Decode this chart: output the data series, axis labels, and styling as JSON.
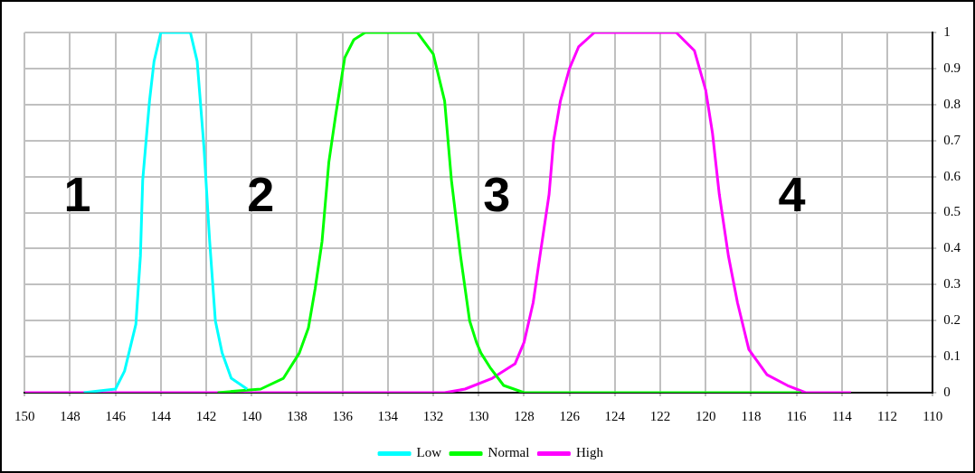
{
  "chart_data": {
    "type": "line",
    "xlim": [
      150,
      110
    ],
    "xticks": [
      150,
      148,
      146,
      144,
      142,
      140,
      138,
      136,
      134,
      132,
      130,
      128,
      126,
      124,
      122,
      120,
      118,
      116,
      114,
      112,
      110
    ],
    "ylim": [
      0,
      1
    ],
    "yticks": [
      0,
      0.1,
      0.2,
      0.3,
      0.4,
      0.5,
      0.6,
      0.7,
      0.8,
      0.9,
      1
    ],
    "grid": true,
    "legend": "bottom",
    "marker": "none",
    "line_style": "solid",
    "series": [
      {
        "name": "Low",
        "color": "#00ffff",
        "x": [
          147.4,
          146.0,
          145.6,
          145.1,
          144.9,
          144.8,
          144.5,
          144.3,
          144.0,
          142.7,
          142.4,
          142.1,
          141.85,
          141.6,
          141.3,
          140.9,
          140.2
        ],
        "values": [
          0,
          0.01,
          0.06,
          0.19,
          0.38,
          0.59,
          0.81,
          0.92,
          1,
          1,
          0.92,
          0.68,
          0.42,
          0.2,
          0.11,
          0.04,
          0.01
        ]
      },
      {
        "name": "Normal",
        "color": "#00ff00",
        "x": [
          141.5,
          139.6,
          138.6,
          137.9,
          137.5,
          137.2,
          136.9,
          136.6,
          136.3,
          135.9,
          135.5,
          135.0,
          132.7,
          132.0,
          131.5,
          131.2,
          130.8,
          130.4,
          130.1,
          129.9,
          129.5,
          128.9,
          128.0,
          115.8
        ],
        "values": [
          0,
          0.01,
          0.04,
          0.11,
          0.18,
          0.29,
          0.42,
          0.64,
          0.77,
          0.93,
          0.98,
          1,
          1,
          0.94,
          0.81,
          0.59,
          0.38,
          0.2,
          0.14,
          0.11,
          0.07,
          0.02,
          0,
          0
        ]
      },
      {
        "name": "High",
        "color": "#ff00ff",
        "x": [
          150,
          131.5,
          130.6,
          129.4,
          128.4,
          128.0,
          127.6,
          127.3,
          126.9,
          126.7,
          126.4,
          126.0,
          125.6,
          124.9,
          121.3,
          120.5,
          120.0,
          119.7,
          119.4,
          119.0,
          118.6,
          118.1,
          117.3,
          116.4,
          115.6,
          113.6
        ],
        "values": [
          0,
          0,
          0.01,
          0.04,
          0.08,
          0.14,
          0.25,
          0.38,
          0.55,
          0.7,
          0.81,
          0.9,
          0.96,
          1,
          1,
          0.95,
          0.84,
          0.72,
          0.55,
          0.38,
          0.25,
          0.12,
          0.05,
          0.02,
          0,
          0
        ]
      }
    ],
    "annotations": [
      "1",
      "2",
      "3",
      "4"
    ]
  }
}
